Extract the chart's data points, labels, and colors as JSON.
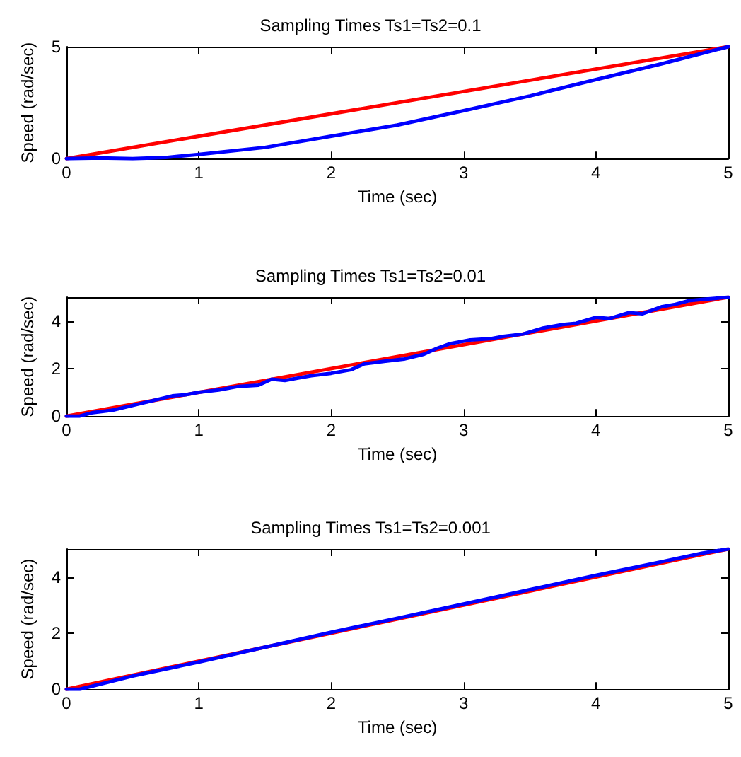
{
  "chart_data": [
    {
      "type": "line",
      "title": "Sampling Times Ts1=Ts2=0.1",
      "xlabel": "Time (sec)",
      "ylabel": "Speed (rad/sec)",
      "xlim": [
        0,
        5
      ],
      "xticks": [
        0,
        1,
        2,
        3,
        4,
        5
      ],
      "ylim": [
        0,
        5
      ],
      "yticks": [
        0,
        5
      ],
      "grid": false,
      "marker": "none",
      "line_style": "solid",
      "series": [
        {
          "color": "#ff0000",
          "x": [
            0,
            5
          ],
          "values": [
            0,
            5
          ]
        },
        {
          "color": "#0000ff",
          "x": [
            0,
            0.25,
            0.5,
            0.75,
            1,
            1.5,
            2,
            2.5,
            3,
            3.5,
            4,
            4.5,
            4.8,
            5
          ],
          "values": [
            0,
            0.03,
            0,
            0.05,
            0.19,
            0.5,
            1,
            1.5,
            2.14,
            2.8,
            3.53,
            4.24,
            4.7,
            5
          ]
        }
      ]
    },
    {
      "type": "line",
      "title": "Sampling Times Ts1=Ts2=0.01",
      "xlabel": "Time (sec)",
      "ylabel": "Speed (rad/sec)",
      "xlim": [
        0,
        5
      ],
      "xticks": [
        0,
        1,
        2,
        3,
        4,
        5
      ],
      "ylim": [
        0,
        5
      ],
      "yticks": [
        0,
        2,
        4
      ],
      "grid": false,
      "marker": "none",
      "line_style": "solid",
      "series": [
        {
          "color": "#ff0000",
          "x": [
            0,
            5
          ],
          "values": [
            0,
            5
          ]
        },
        {
          "color": "#0000ff",
          "x": [
            0,
            0.1,
            0.2,
            0.35,
            0.5,
            0.65,
            0.8,
            0.9,
            1,
            1.15,
            1.3,
            1.45,
            1.55,
            1.65,
            1.75,
            1.85,
            2,
            2.15,
            2.25,
            2.4,
            2.55,
            2.7,
            2.8,
            2.9,
            3.05,
            3.2,
            3.3,
            3.45,
            3.6,
            3.75,
            3.85,
            4,
            4.1,
            4.25,
            4.35,
            4.5,
            4.6,
            4.7,
            4.8,
            4.9,
            5
          ],
          "values": [
            0,
            0,
            0.15,
            0.25,
            0.45,
            0.65,
            0.85,
            0.9,
            1,
            1.1,
            1.25,
            1.3,
            1.55,
            1.5,
            1.6,
            1.7,
            1.8,
            1.95,
            2.2,
            2.3,
            2.4,
            2.6,
            2.85,
            3.05,
            3.2,
            3.25,
            3.35,
            3.45,
            3.7,
            3.85,
            3.9,
            4.15,
            4.1,
            4.35,
            4.3,
            4.6,
            4.7,
            4.85,
            4.9,
            4.95,
            5
          ]
        }
      ]
    },
    {
      "type": "line",
      "title": "Sampling Times Ts1=Ts2=0.001",
      "xlabel": "Time (sec)",
      "ylabel": "Speed (rad/sec)",
      "xlim": [
        0,
        5
      ],
      "xticks": [
        0,
        1,
        2,
        3,
        4,
        5
      ],
      "ylim": [
        0,
        5
      ],
      "yticks": [
        0,
        2,
        4
      ],
      "grid": false,
      "marker": "none",
      "line_style": "solid",
      "series": [
        {
          "color": "#ff0000",
          "x": [
            0,
            5
          ],
          "values": [
            0,
            5
          ]
        },
        {
          "color": "#0000ff",
          "x": [
            0,
            0.1,
            0.5,
            1,
            1.5,
            2,
            2.5,
            3,
            3.5,
            4,
            4.5,
            4.8,
            5
          ],
          "values": [
            0,
            0,
            0.47,
            0.97,
            1.5,
            2.03,
            2.53,
            3.04,
            3.55,
            4.06,
            4.55,
            4.85,
            5
          ]
        }
      ]
    }
  ]
}
